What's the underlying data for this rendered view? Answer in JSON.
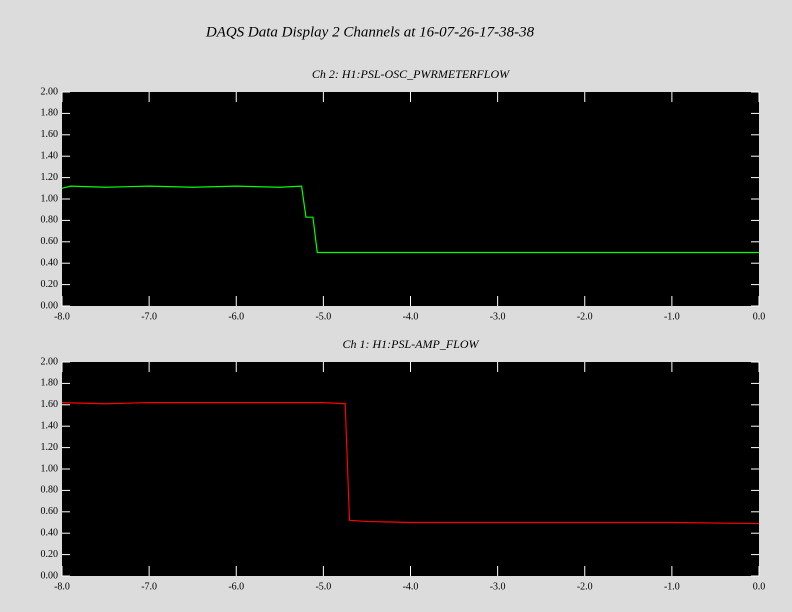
{
  "title": "DAQS Data Display 2 Channels at 16-07-26-17-38-38",
  "chart_data": [
    {
      "type": "line",
      "title": "Ch 2:  H1:PSL-OSC_PWRMETERFLOW",
      "x": [
        -8.0,
        -7.9,
        -7.5,
        -7.0,
        -6.5,
        -6.0,
        -5.5,
        -5.25,
        -5.2,
        -5.12,
        -5.07,
        -4.0,
        -3.0,
        -2.0,
        -1.0,
        0.0
      ],
      "values": [
        1.1,
        1.12,
        1.11,
        1.12,
        1.11,
        1.12,
        1.11,
        1.12,
        0.83,
        0.83,
        0.5,
        0.5,
        0.5,
        0.5,
        0.5,
        0.5
      ],
      "color": "#00ff00",
      "xlim": [
        -8,
        0
      ],
      "xticks": [
        {
          "value": -8,
          "label": "-8.0"
        },
        {
          "value": -7,
          "label": "-7.0"
        },
        {
          "value": -6,
          "label": "-6.0"
        },
        {
          "value": -5,
          "label": "-5.0"
        },
        {
          "value": -4,
          "label": "-4.0"
        },
        {
          "value": -3,
          "label": "-3.0"
        },
        {
          "value": -2,
          "label": "-2.0"
        },
        {
          "value": -1,
          "label": "-1.0"
        },
        {
          "value": 0,
          "label": "0.0"
        }
      ],
      "ylim": [
        0,
        2
      ],
      "yticks": [
        {
          "value": 0,
          "label": "0.00"
        },
        {
          "value": 0.2,
          "label": "0.20"
        },
        {
          "value": 0.4,
          "label": "0.40"
        },
        {
          "value": 0.6,
          "label": "0.60"
        },
        {
          "value": 0.8,
          "label": "0.80"
        },
        {
          "value": 1,
          "label": "1.00"
        },
        {
          "value": 1.2,
          "label": "1.20"
        },
        {
          "value": 1.4,
          "label": "1.40"
        },
        {
          "value": 1.6,
          "label": "1.60"
        },
        {
          "value": 1.8,
          "label": "1.80"
        },
        {
          "value": 2,
          "label": "2.00"
        }
      ]
    },
    {
      "type": "line",
      "title": "Ch 1:  H1:PSL-AMP_FLOW",
      "x": [
        -8.0,
        -7.5,
        -7.0,
        -6.5,
        -6.0,
        -5.5,
        -5.0,
        -4.75,
        -4.7,
        -4.5,
        -4.0,
        -3.0,
        -2.0,
        -1.0,
        0.0
      ],
      "values": [
        1.62,
        1.61,
        1.62,
        1.62,
        1.62,
        1.62,
        1.62,
        1.61,
        0.52,
        0.51,
        0.5,
        0.5,
        0.5,
        0.5,
        0.49
      ],
      "color": "#ff0000",
      "xlim": [
        -8,
        0
      ],
      "xticks": [
        {
          "value": -8,
          "label": "-8.0"
        },
        {
          "value": -7,
          "label": "-7.0"
        },
        {
          "value": -6,
          "label": "-6.0"
        },
        {
          "value": -5,
          "label": "-5.0"
        },
        {
          "value": -4,
          "label": "-4.0"
        },
        {
          "value": -3,
          "label": "-3.0"
        },
        {
          "value": -2,
          "label": "-2.0"
        },
        {
          "value": -1,
          "label": "-1.0"
        },
        {
          "value": 0,
          "label": "0.0"
        }
      ],
      "ylim": [
        0,
        2
      ],
      "yticks": [
        {
          "value": 0,
          "label": "0.00"
        },
        {
          "value": 0.2,
          "label": "0.20"
        },
        {
          "value": 0.4,
          "label": "0.40"
        },
        {
          "value": 0.6,
          "label": "0.60"
        },
        {
          "value": 0.8,
          "label": "0.80"
        },
        {
          "value": 1,
          "label": "1.00"
        },
        {
          "value": 1.2,
          "label": "1.20"
        },
        {
          "value": 1.4,
          "label": "1.40"
        },
        {
          "value": 1.6,
          "label": "1.60"
        },
        {
          "value": 1.8,
          "label": "1.80"
        },
        {
          "value": 2,
          "label": "2.00"
        }
      ]
    }
  ]
}
